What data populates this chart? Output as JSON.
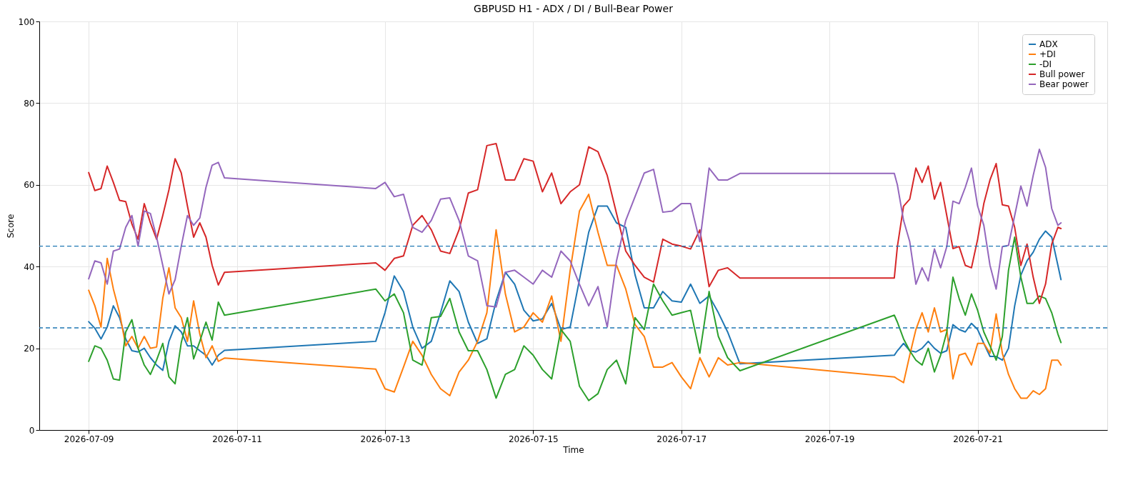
{
  "chart_data": {
    "type": "line",
    "title": "GBPUSD H1 - ADX / DI / Bull-Bear Power",
    "xlabel": "Time",
    "ylabel": "Score",
    "x": [
      "2026-07-09T00:00",
      "2026-07-09T02:00",
      "2026-07-09T04:00",
      "2026-07-09T06:00",
      "2026-07-09T08:00",
      "2026-07-09T10:00",
      "2026-07-09T12:00",
      "2026-07-09T14:00",
      "2026-07-09T16:00",
      "2026-07-09T18:00",
      "2026-07-09T20:00",
      "2026-07-09T22:00",
      "2026-07-10T00:00",
      "2026-07-10T02:00",
      "2026-07-10T04:00",
      "2026-07-10T06:00",
      "2026-07-10T08:00",
      "2026-07-10T10:00",
      "2026-07-10T12:00",
      "2026-07-10T14:00",
      "2026-07-10T16:00",
      "2026-07-10T18:00",
      "2026-07-10T20:00",
      "2026-07-12T21:00",
      "2026-07-13T00:00",
      "2026-07-13T03:00",
      "2026-07-13T06:00",
      "2026-07-13T09:00",
      "2026-07-13T12:00",
      "2026-07-13T15:00",
      "2026-07-13T18:00",
      "2026-07-13T21:00",
      "2026-07-14T00:00",
      "2026-07-14T03:00",
      "2026-07-14T06:00",
      "2026-07-14T09:00",
      "2026-07-14T12:00",
      "2026-07-14T15:00",
      "2026-07-14T18:00",
      "2026-07-14T21:00",
      "2026-07-15T00:00",
      "2026-07-15T03:00",
      "2026-07-15T06:00",
      "2026-07-15T09:00",
      "2026-07-15T12:00",
      "2026-07-15T15:00",
      "2026-07-15T18:00",
      "2026-07-15T21:00",
      "2026-07-16T00:00",
      "2026-07-16T03:00",
      "2026-07-16T06:00",
      "2026-07-16T09:00",
      "2026-07-16T12:00",
      "2026-07-16T15:00",
      "2026-07-16T18:00",
      "2026-07-16T21:00",
      "2026-07-17T00:00",
      "2026-07-17T03:00",
      "2026-07-17T06:00",
      "2026-07-17T09:00",
      "2026-07-17T12:00",
      "2026-07-17T15:00",
      "2026-07-17T19:00",
      "2026-07-19T21:00",
      "2026-07-19T22:00",
      "2026-07-20T00:00",
      "2026-07-20T02:00",
      "2026-07-20T04:00",
      "2026-07-20T06:00",
      "2026-07-20T08:00",
      "2026-07-20T10:00",
      "2026-07-20T12:00",
      "2026-07-20T14:00",
      "2026-07-20T16:00",
      "2026-07-20T18:00",
      "2026-07-20T20:00",
      "2026-07-20T22:00",
      "2026-07-21T00:00",
      "2026-07-21T02:00",
      "2026-07-21T04:00",
      "2026-07-21T06:00",
      "2026-07-21T08:00",
      "2026-07-21T10:00",
      "2026-07-21T12:00",
      "2026-07-21T14:00",
      "2026-07-21T16:00",
      "2026-07-21T18:00",
      "2026-07-21T20:00",
      "2026-07-21T22:00",
      "2026-07-22T00:00",
      "2026-07-22T02:00",
      "2026-07-22T03:00"
    ],
    "series": [
      {
        "name": "ADX",
        "color": "#1f77b4",
        "values": [
          26.5,
          24.9,
          22.3,
          25.2,
          30.4,
          27.5,
          22.3,
          19.4,
          19.1,
          20,
          17.7,
          15.9,
          14.6,
          21.7,
          25.5,
          24,
          20.6,
          20.6,
          19.4,
          18.3,
          15.9,
          18.3,
          19.5,
          21.7,
          28.7,
          37.7,
          33.9,
          25.2,
          20,
          21.7,
          28.7,
          36.5,
          33.9,
          26.4,
          21.2,
          22.3,
          31.6,
          38.6,
          35.7,
          29.3,
          26.7,
          27.2,
          31,
          24.6,
          25.2,
          36.8,
          48.4,
          54.8,
          54.8,
          50.7,
          49.6,
          38,
          29.9,
          29.9,
          33.9,
          31.6,
          31.3,
          35.7,
          31,
          32.8,
          28.7,
          24,
          16.2,
          18.3,
          19.4,
          21.2,
          19.4,
          19.1,
          20,
          21.7,
          20,
          18.8,
          19.4,
          25.8,
          24.6,
          24,
          26.1,
          24.6,
          21.2,
          18,
          18,
          17.1,
          20,
          30.4,
          37.9,
          41.4,
          43.5,
          46.7,
          48.7,
          47.2,
          40.3,
          36.8
        ]
      },
      {
        "name": "+DI",
        "color": "#ff7f0e",
        "values": [
          34.2,
          30.4,
          25.2,
          42,
          34.5,
          28.7,
          20.6,
          22.9,
          20,
          22.9,
          20,
          20.3,
          32.2,
          39.7,
          29.9,
          27.5,
          21.7,
          31.6,
          23.5,
          17.7,
          20.6,
          16.8,
          17.6,
          14.9,
          10.1,
          9.3,
          15.4,
          21.7,
          18.3,
          13.6,
          10.1,
          8.4,
          14.2,
          17.1,
          21.7,
          28.7,
          49,
          33.3,
          24,
          25.2,
          28.7,
          26.4,
          32.8,
          21.7,
          39.1,
          53.6,
          57.7,
          48.4,
          40.3,
          40.3,
          34.5,
          25.8,
          22.9,
          15.4,
          15.4,
          16.5,
          13,
          10.1,
          17.7,
          13,
          17.7,
          15.9,
          16.5,
          13,
          12.5,
          11.6,
          18.3,
          24.6,
          28.7,
          24,
          29.9,
          24,
          24.6,
          12.5,
          18.3,
          18.8,
          15.9,
          21.2,
          21.2,
          18.8,
          28.4,
          18.8,
          13.6,
          10.1,
          7.8,
          7.8,
          9.6,
          8.7,
          10.1,
          17.1,
          17.1,
          15.9
        ]
      },
      {
        "name": "-DI",
        "color": "#2ca02c",
        "values": [
          16.8,
          20.6,
          20,
          17.1,
          12.5,
          12.2,
          24,
          27,
          20,
          15.9,
          13.6,
          17.1,
          21.2,
          13,
          11.3,
          21.4,
          27.5,
          17.4,
          21.7,
          26.4,
          22,
          31.3,
          28.1,
          34.5,
          31.6,
          33.3,
          28.7,
          17.1,
          15.9,
          27.5,
          27.8,
          32.2,
          24,
          19.4,
          19.4,
          14.8,
          7.8,
          13.6,
          14.8,
          20.6,
          18.3,
          14.8,
          12.5,
          24.6,
          21.7,
          10.7,
          7.2,
          8.9,
          14.8,
          17.1,
          11.3,
          27.5,
          24.6,
          35.7,
          31.6,
          28.1,
          28.7,
          29.3,
          18.8,
          33.9,
          22.9,
          17.7,
          14.5,
          28.1,
          26.4,
          22.3,
          19.4,
          17.1,
          15.9,
          20,
          14.2,
          18.3,
          24,
          37.4,
          32.2,
          28.1,
          33.3,
          29.3,
          24,
          20.6,
          17.1,
          22.9,
          39.1,
          47.2,
          37.4,
          31,
          31,
          32.8,
          32.2,
          28.7,
          23.5,
          21.4
        ]
      },
      {
        "name": "Bull power",
        "color": "#d62728",
        "values": [
          63,
          58.6,
          59.1,
          64.6,
          60.6,
          56.2,
          55.9,
          50.4,
          46.7,
          55.4,
          50.7,
          46.7,
          52.5,
          58.8,
          66.4,
          62.9,
          54.8,
          47.2,
          50.7,
          47.2,
          40.3,
          35.5,
          38.6,
          40.9,
          39.1,
          42,
          42.6,
          50.1,
          52.5,
          49,
          43.8,
          43.2,
          49,
          58,
          58.8,
          69.6,
          70.1,
          61.2,
          61.2,
          66.4,
          65.8,
          58.3,
          62.9,
          55.4,
          58.3,
          60,
          69.3,
          68.1,
          62.3,
          53,
          43.8,
          40.3,
          37.4,
          36.2,
          46.7,
          45.5,
          45,
          44.3,
          49,
          35.1,
          39.1,
          39.7,
          37.2,
          37.2,
          44.9,
          54.8,
          56.5,
          64.1,
          60.6,
          64.6,
          56.5,
          60.6,
          52.5,
          44.4,
          44.9,
          40.3,
          39.7,
          46.7,
          55.4,
          61.2,
          65.2,
          55.1,
          54.8,
          49.6,
          40.3,
          45.5,
          37.4,
          31,
          35.7,
          45.5,
          49.6,
          49.3
        ]
      },
      {
        "name": "Bear power",
        "color": "#9467bd",
        "values": [
          37,
          41.4,
          40.9,
          35.7,
          43.8,
          44.3,
          49.6,
          52.5,
          45,
          53.6,
          53,
          47.2,
          40.3,
          33.3,
          36.8,
          45,
          52.5,
          50.1,
          51.9,
          59.4,
          64.8,
          65.5,
          61.7,
          59.1,
          60.6,
          57.1,
          57.7,
          49.6,
          48.4,
          51.3,
          56.5,
          56.8,
          51.3,
          42.6,
          41.4,
          30.4,
          30.1,
          38.6,
          39.1,
          37.4,
          35.7,
          39.1,
          37.4,
          43.8,
          41.4,
          35.7,
          30.4,
          35.1,
          25.2,
          41.4,
          51.3,
          57.1,
          62.9,
          63.8,
          53.3,
          53.6,
          55.4,
          55.4,
          46.1,
          64.1,
          61.2,
          61.2,
          62.8,
          62.8,
          60,
          51.3,
          46.1,
          35.7,
          39.7,
          36.5,
          44.3,
          39.7,
          44.9,
          56,
          55.4,
          59.4,
          64.1,
          54.8,
          50.1,
          40.3,
          34.5,
          44.9,
          45.2,
          52.5,
          59.7,
          54.8,
          62.3,
          68.7,
          64.3,
          54.2,
          50.1,
          50.7
        ]
      }
    ],
    "xlim": [
      "2026-07-08T08:00",
      "2026-07-22T18:00"
    ],
    "xticks": [
      "2026-07-09",
      "2026-07-11",
      "2026-07-13",
      "2026-07-15",
      "2026-07-17",
      "2026-07-19",
      "2026-07-21"
    ],
    "ylim": [
      0,
      100
    ],
    "yticks": [
      0,
      20,
      40,
      60,
      80,
      100
    ],
    "ref_lines": [
      {
        "axis": "y",
        "value": 45,
        "color": "#1f77b4",
        "line_style": "dashed"
      },
      {
        "axis": "y",
        "value": 25,
        "color": "#1f77b4",
        "line_style": "dashed"
      }
    ],
    "grid": true,
    "legend": "top right"
  }
}
